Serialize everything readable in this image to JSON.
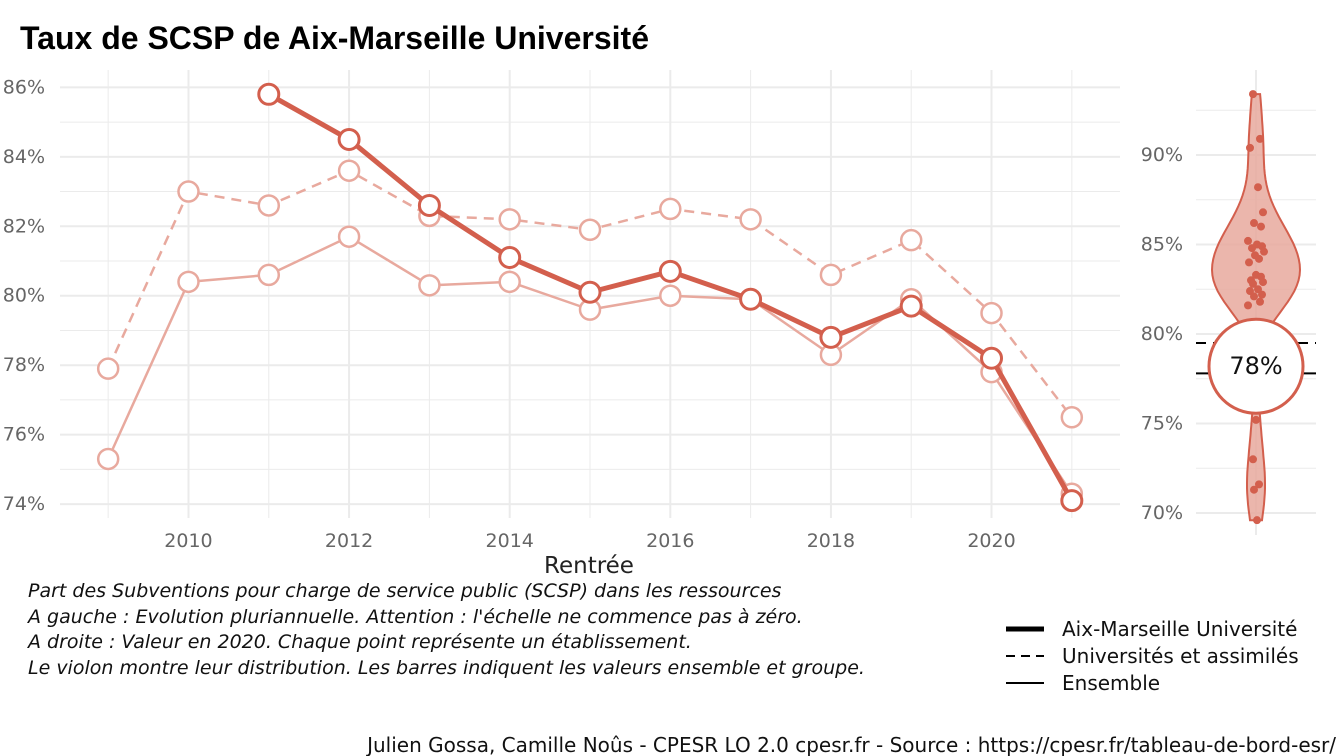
{
  "title": "Taux de SCSP de Aix-Marseille Université",
  "chart_data": [
    {
      "type": "line",
      "xlabel": "Rentrée",
      "ylabel": "",
      "ylim": [
        73.6,
        86.5
      ],
      "xlim": [
        2008.4,
        2021.6
      ],
      "x_ticks": [
        2010,
        2012,
        2014,
        2016,
        2018,
        2020
      ],
      "x_tick_labels": [
        "2010",
        "2012",
        "2014",
        "2016",
        "2018",
        "2020"
      ],
      "y_ticks": [
        74,
        76,
        78,
        80,
        82,
        84,
        86
      ],
      "y_tick_labels": [
        "74%",
        "76%",
        "78%",
        "80%",
        "82%",
        "84%",
        "86%"
      ],
      "grid": true,
      "series": [
        {
          "name": "Aix-Marseille Université",
          "style": "thick",
          "x": [
            2011,
            2012,
            2013,
            2014,
            2015,
            2016,
            2017,
            2018,
            2019,
            2020,
            2021
          ],
          "values": [
            85.8,
            84.5,
            82.6,
            81.1,
            80.1,
            80.7,
            79.9,
            78.8,
            79.7,
            78.2,
            74.1
          ]
        },
        {
          "name": "Universités et assimilés",
          "style": "dashed",
          "x": [
            2009,
            2010,
            2011,
            2012,
            2013,
            2014,
            2015,
            2016,
            2017,
            2018,
            2019,
            2020,
            2021
          ],
          "values": [
            77.9,
            83.0,
            82.6,
            83.6,
            82.3,
            82.2,
            81.9,
            82.5,
            82.2,
            80.6,
            81.6,
            79.5,
            76.5
          ]
        },
        {
          "name": "Ensemble",
          "style": "thin",
          "x": [
            2009,
            2010,
            2011,
            2012,
            2013,
            2014,
            2015,
            2016,
            2017,
            2018,
            2019,
            2020,
            2021
          ],
          "values": [
            75.3,
            80.4,
            80.6,
            81.7,
            80.3,
            80.4,
            79.6,
            80.0,
            79.9,
            78.3,
            79.9,
            77.8,
            74.3
          ]
        }
      ]
    },
    {
      "type": "scatter",
      "xlabel": "",
      "ylabel": "",
      "ylim": [
        69.2,
        94.5
      ],
      "y_ticks": [
        70,
        75,
        80,
        85,
        90
      ],
      "y_tick_labels": [
        "70%",
        "75%",
        "80%",
        "85%",
        "90%"
      ],
      "grid": true,
      "values": [
        93.4,
        90.9,
        90.4,
        88.2,
        86.8,
        86.2,
        86.0,
        85.2,
        85.0,
        84.9,
        84.8,
        84.6,
        84.4,
        84.2,
        84.0,
        83.3,
        83.2,
        83.0,
        82.9,
        82.8,
        82.5,
        82.4,
        82.2,
        82.1,
        81.8,
        81.6,
        75.2,
        73.0,
        71.6,
        71.3,
        69.6
      ],
      "reference_lines": [
        {
          "name": "Universités et assimilés",
          "value": 79.5,
          "style": "dashed"
        },
        {
          "name": "Ensemble",
          "value": 77.8,
          "style": "solid"
        }
      ],
      "highlight_value": 78.2,
      "highlight_label": "78%"
    }
  ],
  "caption": {
    "lines": [
      "Part des Subventions pour charge de service public (SCSP) dans les ressources",
      "A gauche : Evolution pluriannuelle. Attention : l'échelle ne commence pas à zéro.",
      "A droite : Valeur en 2020. Chaque point représente un établissement.",
      "Le violon montre leur distribution. Les barres indiquent les valeurs ensemble et groupe."
    ]
  },
  "legend": {
    "position": "bottom-right",
    "items": [
      {
        "label": "Aix-Marseille Université",
        "style": "thick"
      },
      {
        "label": "Universités et assimilés",
        "style": "dashed"
      },
      {
        "label": "Ensemble",
        "style": "thin"
      }
    ]
  },
  "credit": "Julien Gossa, Camille Noûs - CPESR LO 2.0 cpesr.fr - Source : https://cpesr.fr/tableau-de-bord-esr/",
  "colors": {
    "accent": "#d35f4d",
    "faded": "#e8a99e",
    "grid": "#ebebeb",
    "violin_fill": "#e8a99e"
  }
}
